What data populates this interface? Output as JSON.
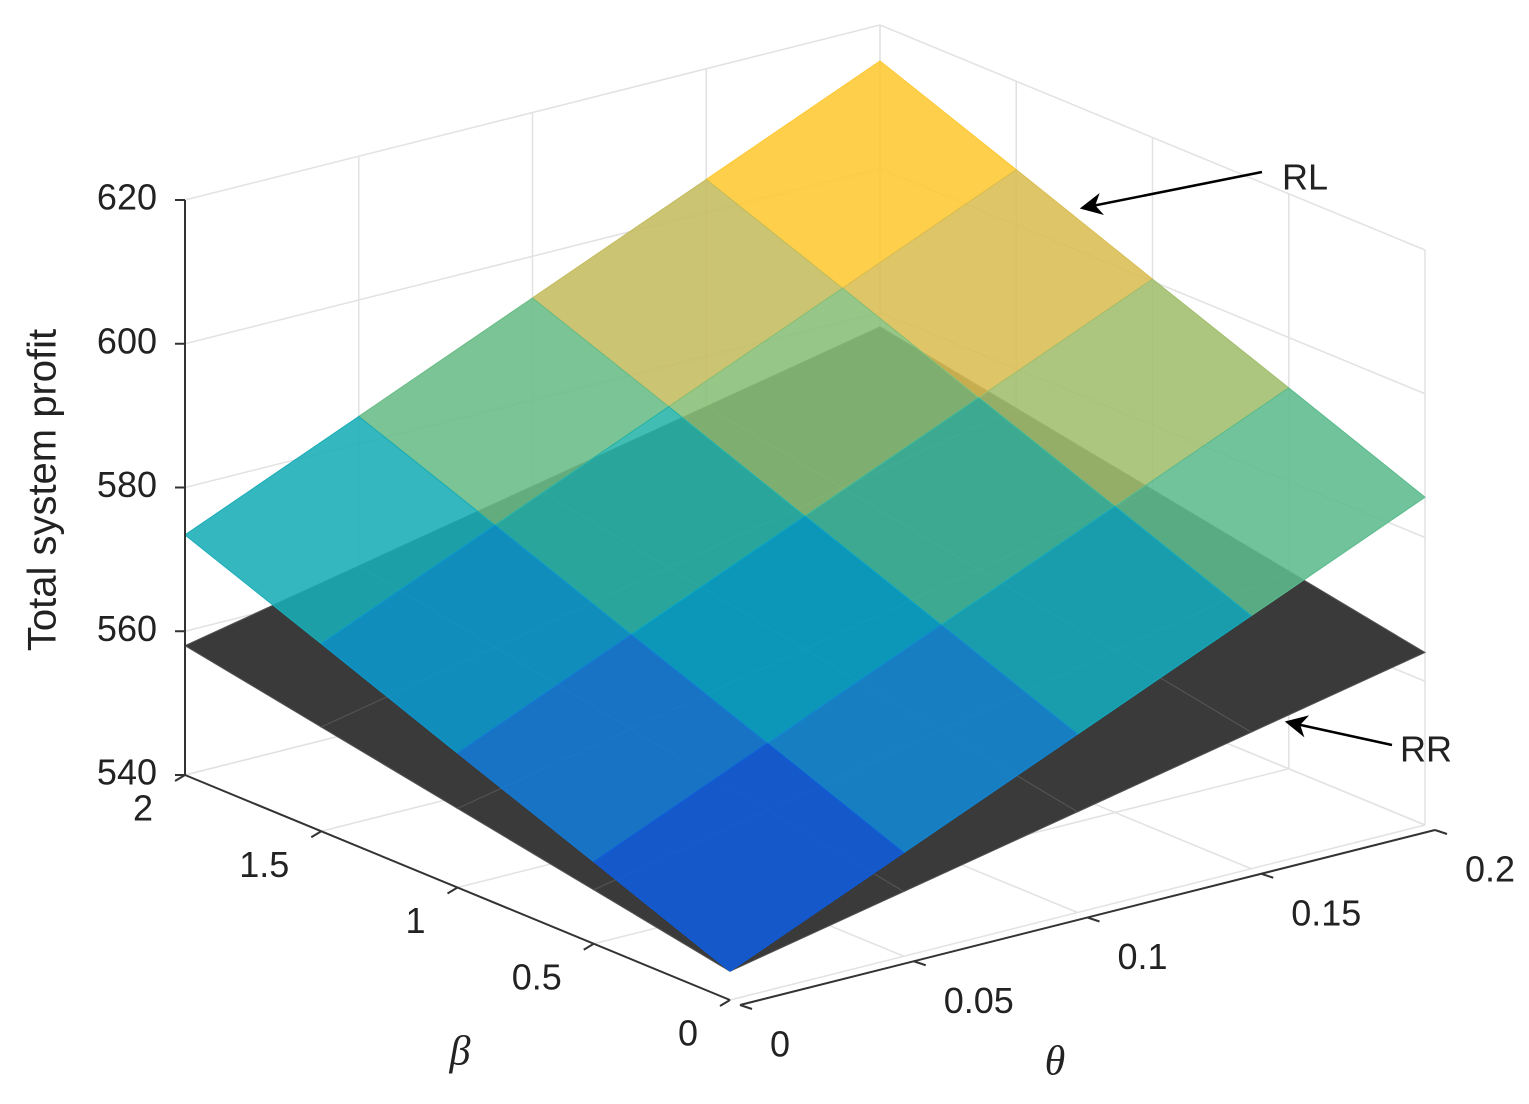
{
  "chart_data": {
    "type": "surface",
    "zlabel": "Total system profit",
    "xlabel": "θ",
    "ylabel": "β",
    "x": [
      0,
      0.05,
      0.1,
      0.15,
      0.2
    ],
    "y": [
      0,
      0.5,
      1,
      1.5,
      2
    ],
    "xlim": [
      0,
      0.2
    ],
    "ylim": [
      0,
      2
    ],
    "zlim": [
      540,
      620
    ],
    "xticks": [
      0,
      0.05,
      0.1,
      0.15,
      0.2
    ],
    "yticks": [
      0,
      0.5,
      1,
      1.5,
      2
    ],
    "zticks": [
      540,
      560,
      580,
      600,
      620
    ],
    "grid": true,
    "series": [
      {
        "name": "RR",
        "color": "#3a3a3a",
        "values": [
          [
            544,
            549,
            554,
            559,
            564
          ],
          [
            547.5,
            552.5,
            557.5,
            562.5,
            567.5
          ],
          [
            551,
            556,
            561,
            566,
            571
          ],
          [
            554.5,
            559.5,
            564.5,
            569.5,
            574.5
          ],
          [
            558,
            563,
            568,
            573,
            578
          ]
        ]
      },
      {
        "name": "RL",
        "colormap": "parula",
        "values": [
          [
            544,
            554.4,
            564.8,
            575.2,
            585.6
          ],
          [
            551.4,
            561.8,
            572.2,
            582.6,
            593
          ],
          [
            558.7,
            569.1,
            579.5,
            589.9,
            600.3
          ],
          [
            566.1,
            576.5,
            586.9,
            597.3,
            607.7
          ],
          [
            573.4,
            583.8,
            594.2,
            604.6,
            615
          ]
        ]
      }
    ]
  }
}
